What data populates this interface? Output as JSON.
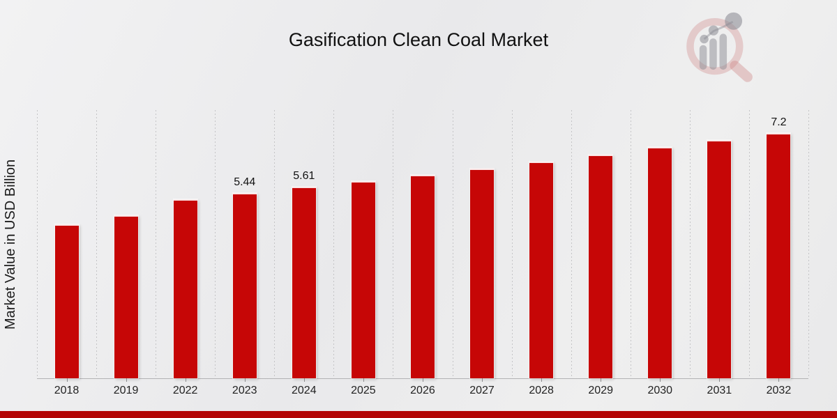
{
  "title": "Gasification Clean Coal Market",
  "y_axis_label": "Market Value in USD Billion",
  "watermark": {
    "name": "magnifier-bar-chart-logo"
  },
  "colors": {
    "bar": "#c60606",
    "bottom_band": "#b30505",
    "gridline": "#c6c6c6",
    "axis": "#b2b2b4",
    "title_text": "#111111",
    "tick_text": "#222222",
    "watermark_ring": "rgba(202,120,120,0.32)",
    "watermark_gray": "rgba(140,140,148,0.5)"
  },
  "chart_data": {
    "type": "bar",
    "title": "Gasification Clean Coal Market",
    "xlabel": "",
    "ylabel": "Market Value in USD Billion",
    "unit": "USD Billion",
    "categories": [
      "2018",
      "2019",
      "2022",
      "2023",
      "2024",
      "2025",
      "2026",
      "2027",
      "2028",
      "2029",
      "2030",
      "2031",
      "2032"
    ],
    "values": [
      4.5,
      4.78,
      5.25,
      5.44,
      5.61,
      5.78,
      5.97,
      6.16,
      6.36,
      6.56,
      6.78,
      6.99,
      7.2
    ],
    "bar_labels": [
      "",
      "",
      "",
      "5.44",
      "5.61",
      "",
      "",
      "",
      "",
      "",
      "",
      "",
      "7.2"
    ],
    "ylim": [
      0,
      8
    ],
    "grid": "vertical-dotted-column-separators",
    "legend": "none",
    "bar_color": "#c60606"
  }
}
